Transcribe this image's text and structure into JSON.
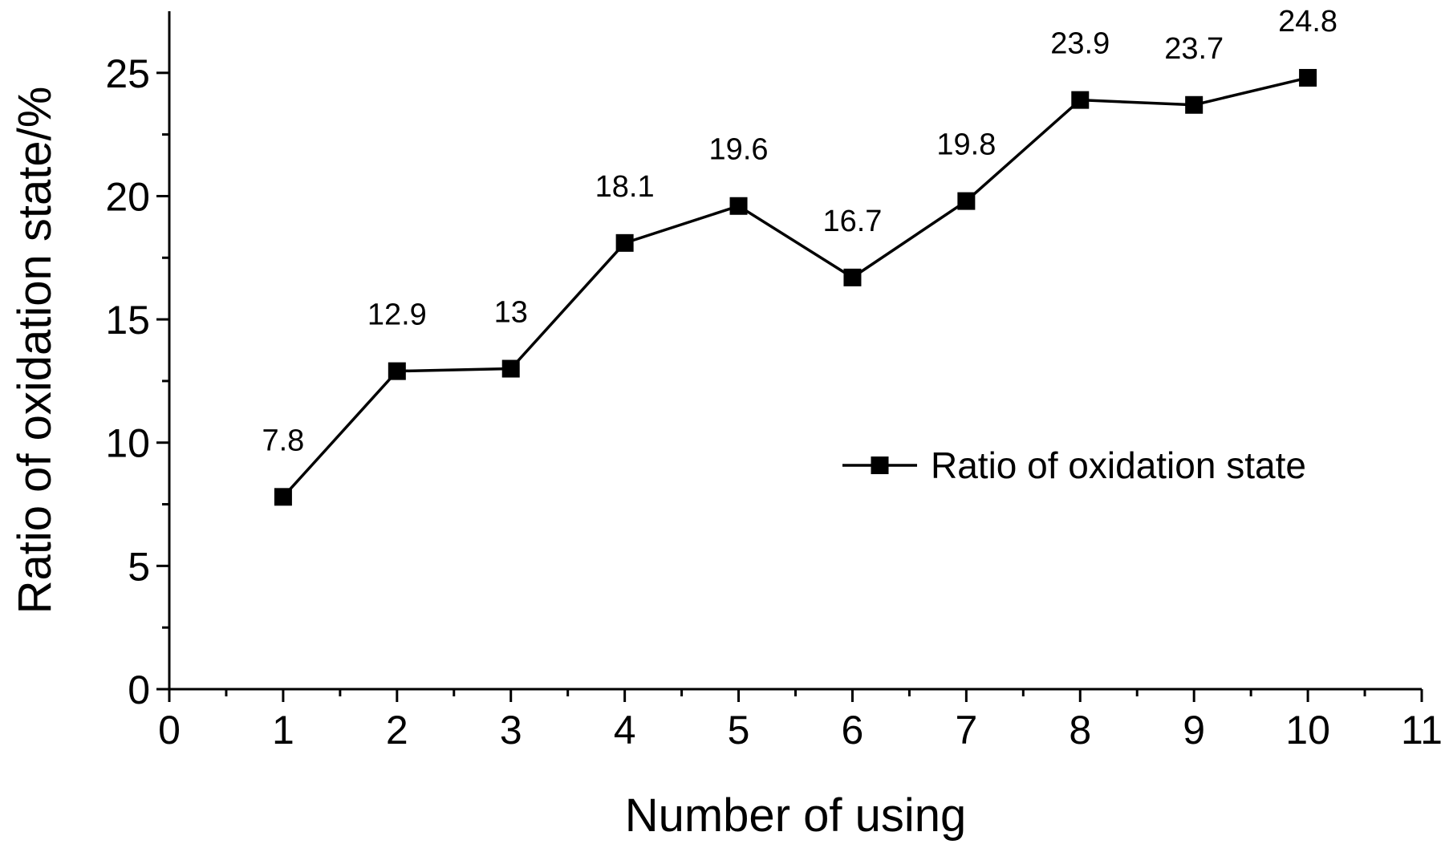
{
  "chart_data": {
    "type": "line",
    "title": "",
    "xlabel": "Number of using",
    "ylabel": "Ratio of oxidation state/%",
    "xlim": [
      0,
      11
    ],
    "ylim": [
      0,
      27.5
    ],
    "x_ticks": [
      0,
      1,
      2,
      3,
      4,
      5,
      6,
      7,
      8,
      9,
      10,
      11
    ],
    "y_ticks": [
      0,
      5,
      10,
      15,
      20,
      25
    ],
    "grid": false,
    "legend_position": "right",
    "series": [
      {
        "name": "Ratio of oxidation state",
        "marker": "square",
        "color": "#000000",
        "x": [
          1,
          2,
          3,
          4,
          5,
          6,
          7,
          8,
          9,
          10
        ],
        "values": [
          7.8,
          12.9,
          13,
          18.1,
          19.6,
          16.7,
          19.8,
          23.9,
          23.7,
          24.8
        ],
        "labels": [
          "7.8",
          "12.9",
          "13",
          "18.1",
          "19.6",
          "16.7",
          "19.8",
          "23.9",
          "23.7",
          "24.8"
        ]
      }
    ]
  }
}
